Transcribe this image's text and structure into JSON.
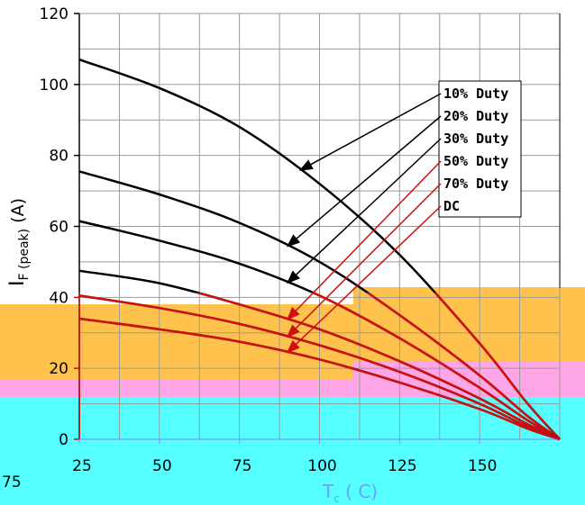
{
  "chart_data": {
    "type": "line",
    "ylabel_main": "I",
    "ylabel_sub": "F (peak)",
    "ylabel_unit": " (A)",
    "xlabel_main": "T",
    "xlabel_sub": "c",
    "xlabel_unit": " ( C)",
    "xlim": [
      25,
      175
    ],
    "ylim": [
      0,
      120
    ],
    "y_ticks": [
      "0",
      "20",
      "40",
      "60",
      "80",
      "100",
      "120"
    ],
    "x_ticks": [
      "25",
      "50",
      "75",
      "100",
      "125",
      "150"
    ],
    "x_partial_tick": "75",
    "series": [
      {
        "name": "10% Duty",
        "x": [
          25,
          50,
          75,
          100,
          125,
          150,
          165,
          175
        ],
        "y": [
          107,
          99,
          88,
          72,
          52,
          27,
          10,
          0
        ]
      },
      {
        "name": "20% Duty",
        "x": [
          25,
          50,
          75,
          100,
          125,
          150,
          165,
          175
        ],
        "y": [
          75.5,
          69,
          61,
          50,
          35,
          18,
          6.5,
          0
        ]
      },
      {
        "name": "30% Duty",
        "x": [
          25,
          50,
          75,
          100,
          125,
          150,
          165,
          175
        ],
        "y": [
          61.5,
          56,
          49.5,
          40.5,
          28.5,
          14.5,
          5.3,
          0
        ]
      },
      {
        "name": "50% Duty",
        "x": [
          25,
          50,
          75,
          100,
          125,
          150,
          165,
          175
        ],
        "y": [
          47.5,
          44,
          38,
          31,
          22,
          11.5,
          4.2,
          0
        ]
      },
      {
        "name": "70% Duty",
        "x": [
          25,
          50,
          75,
          100,
          125,
          150,
          165,
          175
        ],
        "y": [
          40.5,
          37,
          32.5,
          26.5,
          19,
          10,
          3.5,
          0
        ]
      },
      {
        "name": "DC",
        "x": [
          25,
          50,
          75,
          100,
          125,
          150,
          165,
          175
        ],
        "y": [
          34,
          31,
          27.5,
          22.5,
          16,
          8.5,
          3,
          0
        ]
      }
    ]
  },
  "colors": {
    "line": "#000000",
    "line_overlay": "#d01010",
    "overlay_orange": "#ffc34d",
    "overlay_pink": "#ffa6e6",
    "overlay_cyan": "#55ffff",
    "overlay_text": "#6fa0ff"
  }
}
